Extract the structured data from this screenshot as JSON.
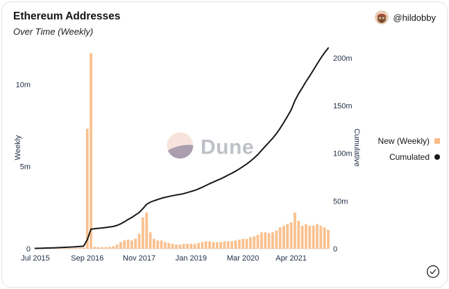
{
  "header": {
    "title": "Ethereum Addresses",
    "subtitle": "Over Time (Weekly)",
    "author_handle": "@hildobby"
  },
  "watermark": {
    "text": "Dune"
  },
  "chart_data": {
    "type": "bar+line dual-axis combo",
    "title": "Ethereum Addresses",
    "subtitle": "Over Time (Weekly)",
    "grid": false,
    "legend_position": "right",
    "left_axis": {
      "title": "Weekly",
      "unit": "millions of addresses",
      "max": 12.3,
      "ticks": [
        {
          "v": 0,
          "label": "0"
        },
        {
          "v": 5,
          "label": "5m"
        },
        {
          "v": 10,
          "label": "10m"
        }
      ]
    },
    "right_axis": {
      "title": "Cumulative",
      "unit": "millions of addresses",
      "max": 212,
      "ticks": [
        {
          "v": 0,
          "label": "0"
        },
        {
          "v": 50,
          "label": "50m"
        },
        {
          "v": 100,
          "label": "100m"
        },
        {
          "v": 150,
          "label": "150m"
        },
        {
          "v": 200,
          "label": "200m"
        }
      ]
    },
    "x_ticks": [
      {
        "label": "Jul 2015",
        "date": "2015-07"
      },
      {
        "label": "Sep 2016",
        "date": "2016-09"
      },
      {
        "label": "Nov 2017",
        "date": "2017-11"
      },
      {
        "label": "Jan 2019",
        "date": "2019-01"
      },
      {
        "label": "Mar 2020",
        "date": "2020-03"
      },
      {
        "label": "Apr 2021",
        "date": "2021-04"
      }
    ],
    "legend": [
      {
        "label": "New (Weekly)",
        "color": "#f9bc85",
        "marker": "square"
      },
      {
        "label": "Cumulated",
        "color": "#17171b",
        "marker": "circle"
      }
    ],
    "series": [
      {
        "name": "New (Weekly)",
        "type": "bar",
        "axis": "left",
        "color": "#f9bc85"
      },
      {
        "name": "Cumulated",
        "type": "line",
        "axis": "right",
        "color": "#17171b"
      }
    ],
    "columns": [
      "month",
      "new_weekly_m",
      "cumulative_m"
    ],
    "rows": [
      [
        "2015-07",
        0.08,
        0.3
      ],
      [
        "2015-08",
        0.04,
        0.45
      ],
      [
        "2015-09",
        0.03,
        0.58
      ],
      [
        "2015-10",
        0.03,
        0.7
      ],
      [
        "2015-11",
        0.03,
        0.83
      ],
      [
        "2015-12",
        0.04,
        0.97
      ],
      [
        "2016-01",
        0.04,
        1.1
      ],
      [
        "2016-02",
        0.04,
        1.25
      ],
      [
        "2016-03",
        0.05,
        1.45
      ],
      [
        "2016-04",
        0.05,
        1.65
      ],
      [
        "2016-05",
        0.05,
        1.85
      ],
      [
        "2016-06",
        0.06,
        2.1
      ],
      [
        "2016-07",
        0.06,
        2.35
      ],
      [
        "2016-08",
        0.07,
        2.6
      ],
      [
        "2016-09",
        7.3,
        9.5
      ],
      [
        "2016-10",
        11.9,
        20.5
      ],
      [
        "2016-11",
        0.12,
        21.0
      ],
      [
        "2016-12",
        0.1,
        21.4
      ],
      [
        "2017-01",
        0.1,
        21.8
      ],
      [
        "2017-02",
        0.1,
        22.2
      ],
      [
        "2017-03",
        0.12,
        22.7
      ],
      [
        "2017-04",
        0.15,
        23.3
      ],
      [
        "2017-05",
        0.25,
        24.4
      ],
      [
        "2017-06",
        0.4,
        26.1
      ],
      [
        "2017-07",
        0.5,
        28.2
      ],
      [
        "2017-08",
        0.55,
        30.6
      ],
      [
        "2017-09",
        0.5,
        32.8
      ],
      [
        "2017-10",
        0.6,
        35.4
      ],
      [
        "2017-11",
        0.9,
        38.0
      ],
      [
        "2017-12",
        1.9,
        42.0
      ],
      [
        "2018-01",
        2.2,
        46.5
      ],
      [
        "2018-02",
        1.0,
        48.8
      ],
      [
        "2018-03",
        0.6,
        50.3
      ],
      [
        "2018-04",
        0.5,
        51.6
      ],
      [
        "2018-05",
        0.5,
        52.9
      ],
      [
        "2018-06",
        0.4,
        53.9
      ],
      [
        "2018-07",
        0.35,
        54.8
      ],
      [
        "2018-08",
        0.3,
        55.6
      ],
      [
        "2018-09",
        0.25,
        56.3
      ],
      [
        "2018-10",
        0.25,
        57.0
      ],
      [
        "2018-11",
        0.3,
        57.8
      ],
      [
        "2018-12",
        0.3,
        58.9
      ],
      [
        "2019-01",
        0.3,
        60.0
      ],
      [
        "2019-02",
        0.3,
        61.2
      ],
      [
        "2019-03",
        0.35,
        62.7
      ],
      [
        "2019-04",
        0.4,
        64.4
      ],
      [
        "2019-05",
        0.45,
        66.3
      ],
      [
        "2019-06",
        0.45,
        68.2
      ],
      [
        "2019-07",
        0.4,
        69.9
      ],
      [
        "2019-08",
        0.4,
        71.6
      ],
      [
        "2019-09",
        0.4,
        73.3
      ],
      [
        "2019-10",
        0.45,
        75.2
      ],
      [
        "2019-11",
        0.45,
        77.2
      ],
      [
        "2019-12",
        0.45,
        79.1
      ],
      [
        "2020-01",
        0.5,
        81.3
      ],
      [
        "2020-02",
        0.55,
        83.6
      ],
      [
        "2020-03",
        0.6,
        86.2
      ],
      [
        "2020-04",
        0.6,
        88.8
      ],
      [
        "2020-05",
        0.7,
        91.8
      ],
      [
        "2020-06",
        0.75,
        95.1
      ],
      [
        "2020-07",
        0.85,
        98.7
      ],
      [
        "2020-08",
        1.0,
        103.0
      ],
      [
        "2020-09",
        1.0,
        107.4
      ],
      [
        "2020-10",
        0.95,
        111.5
      ],
      [
        "2020-11",
        1.0,
        115.8
      ],
      [
        "2020-12",
        1.1,
        120.6
      ],
      [
        "2021-01",
        1.3,
        126.2
      ],
      [
        "2021-02",
        1.4,
        132.3
      ],
      [
        "2021-03",
        1.5,
        138.8
      ],
      [
        "2021-04",
        1.6,
        145.7
      ],
      [
        "2021-05",
        2.2,
        155.2
      ],
      [
        "2021-06",
        1.7,
        162.6
      ],
      [
        "2021-07",
        1.4,
        168.7
      ],
      [
        "2021-08",
        1.5,
        175.2
      ],
      [
        "2021-09",
        1.4,
        181.2
      ],
      [
        "2021-10",
        1.4,
        187.3
      ],
      [
        "2021-11",
        1.5,
        193.8
      ],
      [
        "2021-12",
        1.4,
        199.9
      ],
      [
        "2022-01",
        1.3,
        205.5
      ],
      [
        "2022-02",
        1.15,
        210.5
      ]
    ]
  }
}
